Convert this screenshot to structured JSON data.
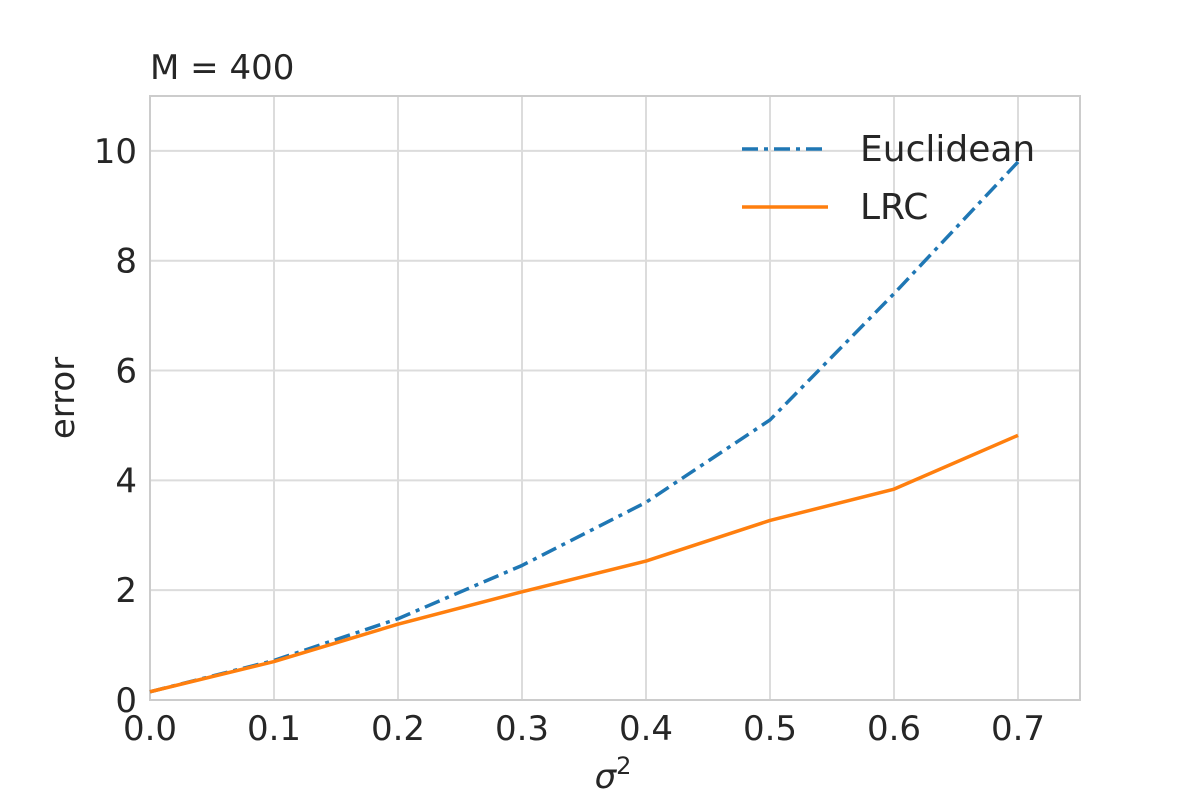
{
  "chart_data": {
    "type": "line",
    "title": "M = 400",
    "xlabel": "σ",
    "xlabel_superscript": "2",
    "ylabel": "error",
    "xlim": [
      0.0,
      0.75
    ],
    "ylim": [
      0,
      11
    ],
    "x_ticks": [
      0.0,
      0.1,
      0.2,
      0.3,
      0.4,
      0.5,
      0.6,
      0.7
    ],
    "x_tick_labels": [
      "0.0",
      "0.1",
      "0.2",
      "0.3",
      "0.4",
      "0.5",
      "0.6",
      "0.7"
    ],
    "y_ticks": [
      0,
      2,
      4,
      6,
      8,
      10
    ],
    "y_tick_labels": [
      "0",
      "2",
      "4",
      "6",
      "8",
      "10"
    ],
    "grid": true,
    "legend_position": "top-right",
    "x": [
      0.0,
      0.1,
      0.2,
      0.3,
      0.4,
      0.5,
      0.6,
      0.7
    ],
    "series": [
      {
        "name": "Euclidean",
        "color": "#1f77b4",
        "line_style": "dash-dot",
        "values": [
          0.15,
          0.72,
          1.48,
          2.45,
          3.6,
          5.1,
          7.4,
          9.8
        ]
      },
      {
        "name": "LRC",
        "color": "#ff7f0e",
        "line_style": "solid",
        "values": [
          0.15,
          0.7,
          1.38,
          1.97,
          2.53,
          3.27,
          3.84,
          4.82
        ]
      }
    ]
  }
}
